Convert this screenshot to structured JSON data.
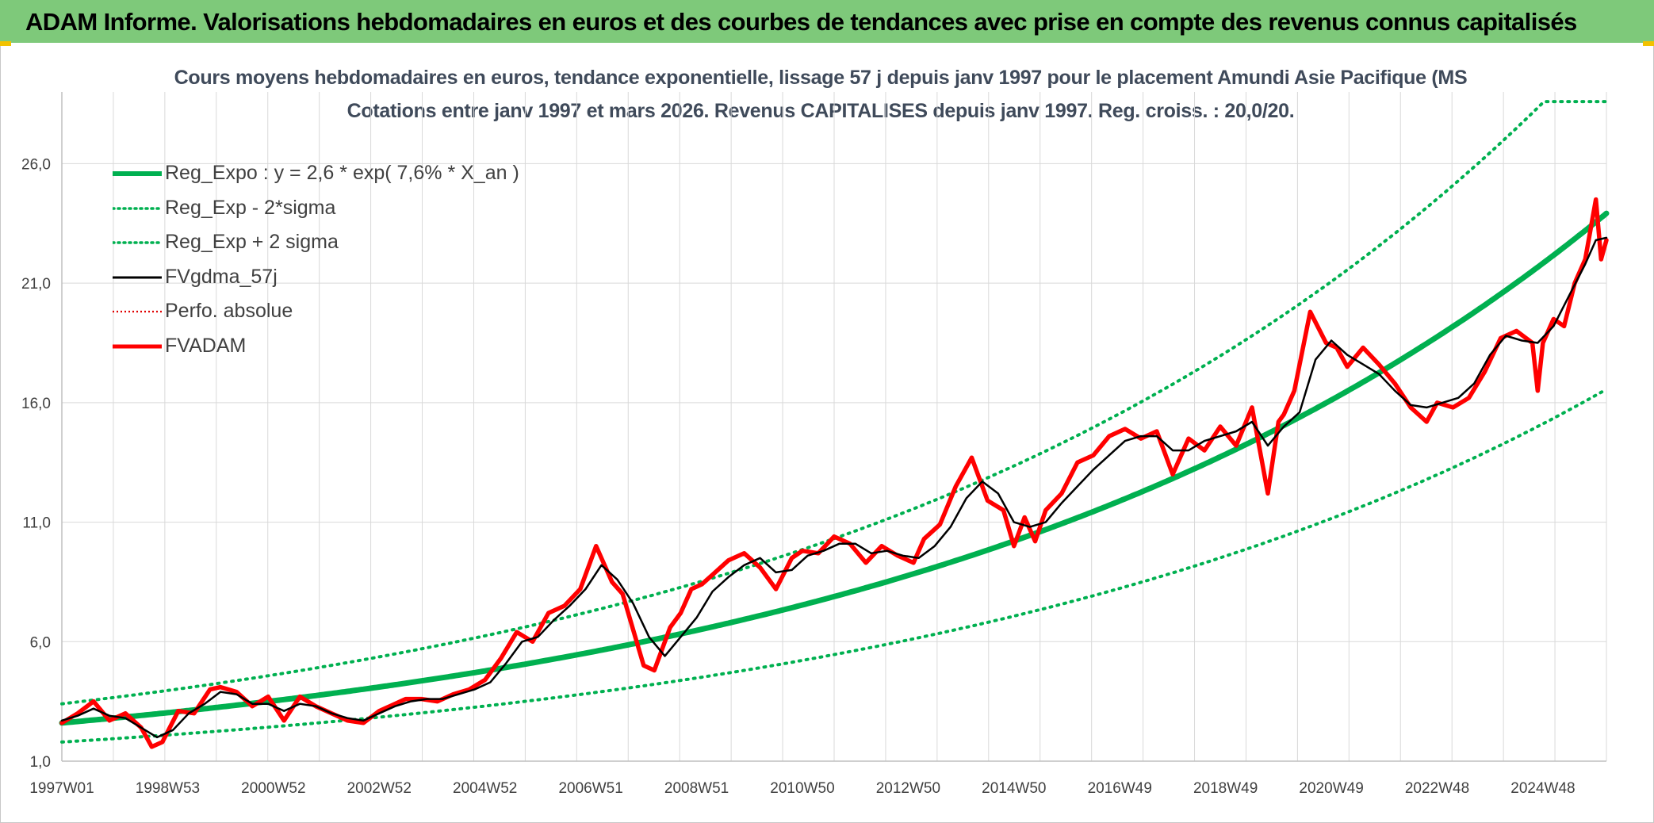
{
  "banner": {
    "title": "ADAM Informe. Valorisations hebdomadaires en euros et des courbes de tendances avec prise en compte des revenus connus capitalisés",
    "color": "#7ec97a",
    "corner_color": "#f2c200"
  },
  "chart_data": {
    "type": "line",
    "title": [
      "Cours moyens hebdomadaires en euros, tendance exponentielle, lissage 57 j depuis janv 1997 pour le placement Amundi Asie Pacifique (MS",
      "Cotations entre janv 1997 et mars 2026. Revenus CAPITALISES depuis janv 1997. Reg. croiss. : 20,0/20."
    ],
    "xlabel": "",
    "ylabel": "",
    "x_range": [
      1997.0,
      2026.2
    ],
    "ylim": [
      1,
      29
    ],
    "y_ticks": [
      1.0,
      6.0,
      11.0,
      16.0,
      21.0,
      26.0
    ],
    "y_tick_labels": [
      "1,0",
      "6,0",
      "11,0",
      "16,0",
      "21,0",
      "26,0"
    ],
    "x_ticks": [
      1997.0,
      1999.0,
      2001.0,
      2003.0,
      2005.0,
      2007.0,
      2009.0,
      2011.0,
      2013.0,
      2015.0,
      2017.0,
      2019.0,
      2021.0,
      2023.0,
      2025.0
    ],
    "x_tick_labels": [
      "1997W01",
      "1998W53",
      "2000W52",
      "2002W52",
      "2004W52",
      "2006W51",
      "2008W51",
      "2010W50",
      "2012W50",
      "2014W50",
      "2016W49",
      "2018W49",
      "2020W49",
      "2022W48",
      "2024W48"
    ],
    "grid": true,
    "legend_position": "top-left",
    "legend": [
      {
        "name": "Reg_Expo : y = 2,6 * exp( 7,6% *  X_an )",
        "color": "#00b050",
        "style": "solid-thick"
      },
      {
        "name": "Reg_Exp - 2*sigma",
        "color": "#00b050",
        "style": "dotted"
      },
      {
        "name": "Reg_Exp + 2 sigma",
        "color": "#00b050",
        "style": "dotted"
      },
      {
        "name": "FVgdma_57j",
        "color": "#000000",
        "style": "solid"
      },
      {
        "name": "Perfo. absolue",
        "color": "#e00000",
        "style": "dotted"
      },
      {
        "name": "FVADAM",
        "color": "#ff0000",
        "style": "solid-thick"
      }
    ],
    "series": [
      {
        "name": "Reg_Expo",
        "kind": "exponential",
        "a": 2.6,
        "rate": 0.076,
        "start_year": 1997.0,
        "color": "#00b050"
      },
      {
        "name": "Reg_Exp - 2*sigma",
        "kind": "exponential",
        "a": 1.8,
        "rate": 0.076,
        "start_year": 1997.0,
        "color": "#00b050"
      },
      {
        "name": "Reg_Exp + 2 sigma",
        "kind": "exponential",
        "a": 3.4,
        "rate": 0.076,
        "start_year": 1997.0,
        "cap": 28.6,
        "color": "#00b050"
      },
      {
        "name": "FVADAM",
        "color": "#ff0000",
        "x": [
          1997.0,
          1997.3,
          1997.6,
          1997.9,
          1998.2,
          1998.5,
          1998.7,
          1998.9,
          1999.2,
          1999.5,
          1999.8,
          2000.0,
          2000.3,
          2000.6,
          2000.9,
          2001.2,
          2001.5,
          2001.8,
          2002.1,
          2002.4,
          2002.7,
          2003.0,
          2003.2,
          2003.5,
          2003.8,
          2004.1,
          2004.4,
          2004.7,
          2005.0,
          2005.3,
          2005.6,
          2005.9,
          2006.2,
          2006.5,
          2006.8,
          2007.1,
          2007.4,
          2007.6,
          2007.8,
          2008.0,
          2008.2,
          2008.5,
          2008.7,
          2008.9,
          2009.1,
          2009.3,
          2009.6,
          2009.9,
          2010.2,
          2010.5,
          2010.8,
          2011.0,
          2011.3,
          2011.6,
          2011.9,
          2012.2,
          2012.5,
          2012.8,
          2013.1,
          2013.3,
          2013.6,
          2013.9,
          2014.2,
          2014.5,
          2014.8,
          2015.0,
          2015.2,
          2015.4,
          2015.6,
          2015.9,
          2016.2,
          2016.5,
          2016.8,
          2017.1,
          2017.4,
          2017.7,
          2018.0,
          2018.3,
          2018.6,
          2018.9,
          2019.2,
          2019.5,
          2019.8,
          2020.0,
          2020.1,
          2020.3,
          2020.6,
          2020.9,
          2021.1,
          2021.3,
          2021.6,
          2021.9,
          2022.2,
          2022.5,
          2022.8,
          2023.0,
          2023.3,
          2023.6,
          2023.9,
          2024.2,
          2024.5,
          2024.8,
          2024.9,
          2025.0,
          2025.2,
          2025.4,
          2025.6,
          2025.8,
          2026.0,
          2026.1,
          2026.2
        ],
        "y": [
          2.6,
          3.0,
          3.5,
          2.7,
          3.0,
          2.4,
          1.6,
          1.8,
          3.1,
          3.0,
          4.0,
          4.1,
          3.9,
          3.3,
          3.7,
          2.7,
          3.7,
          3.3,
          3.0,
          2.7,
          2.6,
          3.1,
          3.3,
          3.6,
          3.6,
          3.5,
          3.8,
          4.0,
          4.4,
          5.3,
          6.4,
          6.0,
          7.2,
          7.5,
          8.2,
          10.0,
          8.5,
          8.0,
          6.5,
          5.0,
          4.8,
          6.6,
          7.2,
          8.2,
          8.4,
          8.8,
          9.4,
          9.7,
          9.1,
          8.2,
          9.5,
          9.8,
          9.7,
          10.4,
          10.1,
          9.3,
          10.0,
          9.6,
          9.3,
          10.3,
          10.9,
          12.5,
          13.7,
          11.9,
          11.5,
          10.0,
          11.2,
          10.2,
          11.5,
          12.2,
          13.5,
          13.8,
          14.6,
          14.9,
          14.5,
          14.8,
          13.0,
          14.5,
          14.0,
          15.0,
          14.2,
          15.8,
          12.2,
          15.2,
          15.5,
          16.5,
          19.8,
          18.5,
          18.3,
          17.5,
          18.3,
          17.6,
          16.8,
          15.8,
          15.2,
          16.0,
          15.8,
          16.2,
          17.3,
          18.7,
          19.0,
          18.5,
          16.5,
          18.5,
          19.5,
          19.2,
          21.0,
          22.0,
          24.5,
          22.0,
          22.8
        ]
      },
      {
        "name": "FVgdma_57j",
        "color": "#000000",
        "x": [
          1997.0,
          1997.3,
          1997.6,
          1997.9,
          1998.2,
          1998.5,
          1998.8,
          1999.1,
          1999.4,
          1999.7,
          2000.0,
          2000.3,
          2000.6,
          2000.9,
          2001.2,
          2001.5,
          2001.8,
          2002.1,
          2002.4,
          2002.7,
          2003.0,
          2003.3,
          2003.6,
          2003.9,
          2004.2,
          2004.5,
          2004.8,
          2005.1,
          2005.4,
          2005.7,
          2006.0,
          2006.3,
          2006.6,
          2006.9,
          2007.2,
          2007.5,
          2007.8,
          2008.1,
          2008.4,
          2008.7,
          2009.0,
          2009.3,
          2009.6,
          2009.9,
          2010.2,
          2010.5,
          2010.8,
          2011.1,
          2011.4,
          2011.7,
          2012.0,
          2012.3,
          2012.6,
          2012.9,
          2013.2,
          2013.5,
          2013.8,
          2014.1,
          2014.4,
          2014.7,
          2015.0,
          2015.3,
          2015.6,
          2015.9,
          2016.2,
          2016.5,
          2016.8,
          2017.1,
          2017.4,
          2017.7,
          2018.0,
          2018.3,
          2018.6,
          2018.9,
          2019.2,
          2019.5,
          2019.8,
          2020.1,
          2020.4,
          2020.7,
          2021.0,
          2021.3,
          2021.6,
          2021.9,
          2022.2,
          2022.5,
          2022.8,
          2023.1,
          2023.4,
          2023.7,
          2024.0,
          2024.3,
          2024.6,
          2024.9,
          2025.2,
          2025.5,
          2025.8,
          2026.0,
          2026.2
        ],
        "y": [
          2.7,
          2.9,
          3.2,
          2.9,
          2.8,
          2.4,
          2.0,
          2.3,
          3.0,
          3.4,
          3.9,
          3.8,
          3.4,
          3.4,
          3.1,
          3.4,
          3.3,
          3.0,
          2.8,
          2.7,
          3.0,
          3.3,
          3.5,
          3.6,
          3.6,
          3.8,
          4.0,
          4.3,
          5.1,
          6.0,
          6.2,
          6.9,
          7.5,
          8.2,
          9.2,
          8.6,
          7.6,
          6.2,
          5.4,
          6.2,
          7.0,
          8.1,
          8.7,
          9.2,
          9.5,
          8.9,
          9.0,
          9.6,
          9.8,
          10.1,
          10.1,
          9.7,
          9.8,
          9.6,
          9.5,
          10.0,
          10.8,
          12.0,
          12.7,
          12.2,
          11.0,
          10.8,
          11.0,
          11.8,
          12.5,
          13.2,
          13.8,
          14.4,
          14.6,
          14.6,
          14.0,
          14.0,
          14.4,
          14.6,
          14.8,
          15.2,
          14.2,
          15.0,
          15.6,
          17.8,
          18.6,
          18.0,
          17.6,
          17.2,
          16.5,
          15.9,
          15.8,
          16.0,
          16.2,
          16.8,
          18.0,
          18.8,
          18.6,
          18.5,
          19.2,
          20.5,
          21.8,
          22.8,
          22.9
        ]
      }
    ]
  }
}
